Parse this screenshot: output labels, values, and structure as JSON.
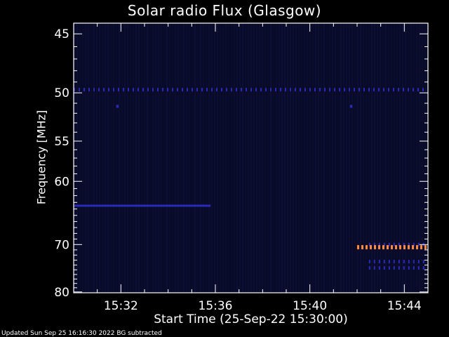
{
  "chart_data": {
    "type": "heatmap",
    "title": "Solar radio Flux (Glasgow)",
    "xlabel": "Start Time (25-Sep-22 15:30:00)",
    "ylabel": "Frequency [MHz]",
    "x_tick_labels": [
      "15:32",
      "15:36",
      "15:40",
      "15:44"
    ],
    "x_tick_minutes": [
      2,
      6,
      10,
      14
    ],
    "xlim_minutes": [
      0,
      15
    ],
    "y_tick_labels": [
      "45",
      "50",
      "55",
      "60",
      "70",
      "80"
    ],
    "y_tick_values": [
      45,
      50,
      55,
      60,
      70,
      80
    ],
    "ylim": [
      44.2,
      80.2
    ],
    "y_scale": "reciprocal",
    "grid": false,
    "colors": {
      "background": "#000000",
      "plot_background": "#080a28",
      "frame": "#ffffff",
      "weak_emission": "#2a2ab8",
      "strong_emission": "#ff8a3c"
    },
    "features": [
      {
        "name": "periodic band",
        "freq_mhz": 49.7,
        "t_start_min": 0.0,
        "t_end_min": 15.0,
        "intensity": "weak",
        "style": "dashed"
      },
      {
        "name": "isolated spike",
        "freq_mhz": 51.3,
        "t_start_min": 1.8,
        "t_end_min": 1.9,
        "intensity": "weak",
        "style": "dot"
      },
      {
        "name": "isolated spike",
        "freq_mhz": 51.3,
        "t_start_min": 11.7,
        "t_end_min": 11.8,
        "intensity": "weak",
        "style": "dot"
      },
      {
        "name": "continuous band",
        "freq_mhz": 63.5,
        "t_start_min": 0.0,
        "t_end_min": 5.8,
        "intensity": "weak",
        "style": "solid"
      },
      {
        "name": "emission band",
        "freq_mhz": 70.0,
        "t_start_min": 12.5,
        "t_end_min": 15.0,
        "intensity": "weak",
        "style": "dashed"
      },
      {
        "name": "emission band",
        "freq_mhz": 70.5,
        "t_start_min": 12.0,
        "t_end_min": 15.0,
        "intensity": "strong",
        "style": "dashed"
      },
      {
        "name": "emission band",
        "freq_mhz": 73.3,
        "t_start_min": 12.5,
        "t_end_min": 15.0,
        "intensity": "weak",
        "style": "dashed"
      },
      {
        "name": "emission band",
        "freq_mhz": 74.6,
        "t_start_min": 12.5,
        "t_end_min": 15.0,
        "intensity": "weak",
        "style": "dashed"
      }
    ]
  },
  "footer": {
    "text": "Updated Sun Sep 25 16:16:30 2022   BG subtracted"
  }
}
